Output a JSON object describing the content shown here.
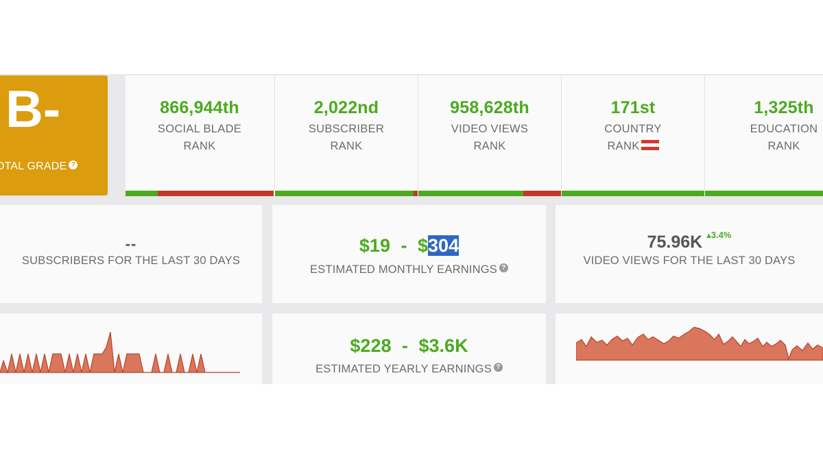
{
  "grade": {
    "letter": "B-",
    "label": "OTAL GRADE",
    "help_icon": "question-circle-icon"
  },
  "ranks": [
    {
      "value": "866,944th",
      "line1": "SOCIAL BLADE",
      "line2": "RANK"
    },
    {
      "value": "2,022nd",
      "line1": "SUBSCRIBER",
      "line2": "RANK"
    },
    {
      "value": "958,628th",
      "line1": "VIDEO VIEWS",
      "line2": "RANK"
    },
    {
      "value": "171st",
      "line1": "COUNTRY",
      "line2": "RANK"
    },
    {
      "value": "1,325th",
      "line1": "EDUCATION",
      "line2": "RANK"
    }
  ],
  "subscribers_card": {
    "value": "--",
    "label": "SUBSCRIBERS FOR THE LAST 30 DAYS"
  },
  "monthly_earnings": {
    "low": "$19",
    "separator": "-",
    "high_prefix": "$",
    "high_value": "304",
    "label": "ESTIMATED MONTHLY EARNINGS"
  },
  "views_card": {
    "value": "75.96K",
    "delta": "3.4%",
    "label": "VIDEO VIEWS FOR THE LAST 30 DAYS"
  },
  "yearly_earnings": {
    "low": "$228",
    "separator": "-",
    "high": "$3.6K",
    "label": "ESTIMATED YEARLY EARNINGS"
  },
  "colors": {
    "green": "#4caa1f",
    "red": "#c0392b",
    "grade_bg": "#db9c0e",
    "chart_fill": "#d9765b",
    "chart_line": "#b5442c",
    "highlight": "#2f66c4"
  }
}
